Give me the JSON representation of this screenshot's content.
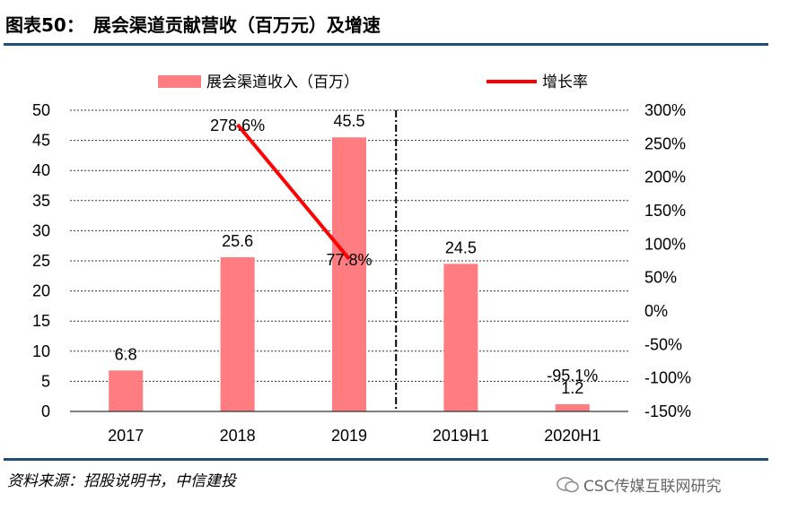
{
  "header": {
    "figure_number": "图表50：",
    "title": "展会渠道贡献营收（百万元）及增速"
  },
  "footer": {
    "source": "资料来源：招股说明书，中信建投",
    "watermark": "CSC传媒互联网研究"
  },
  "chart_data": {
    "type": "bar",
    "categories": [
      "2017",
      "2018",
      "2019",
      "2019H1",
      "2020H1"
    ],
    "series": [
      {
        "name": "展会渠道收入（百万）",
        "type": "bar",
        "axis": "left",
        "values": [
          6.8,
          25.6,
          45.5,
          24.5,
          1.2
        ],
        "value_labels": [
          "6.8",
          "25.6",
          "45.5",
          "24.5",
          "1.2"
        ],
        "color": "#ff7c80"
      },
      {
        "name": "增长率",
        "type": "line",
        "axis": "right",
        "segments": [
          {
            "categories": [
              "2018",
              "2019"
            ],
            "values": [
              278.6,
              77.8
            ]
          }
        ],
        "point_labels": [
          {
            "category": "2018",
            "value": 278.6,
            "label": "278.6%"
          },
          {
            "category": "2019",
            "value": 77.8,
            "label": "77.8%"
          },
          {
            "category": "2020H1",
            "value": -95.1,
            "label": "-95.1%"
          }
        ],
        "color": "#ff0000"
      }
    ],
    "y_left": {
      "min": 0,
      "max": 50,
      "step": 5,
      "tick_labels": [
        "0",
        "5",
        "10",
        "15",
        "20",
        "25",
        "30",
        "35",
        "40",
        "45",
        "50"
      ]
    },
    "y_right": {
      "min": -150,
      "max": 300,
      "step": 50,
      "tick_labels": [
        "-150%",
        "-100%",
        "-50%",
        "0%",
        "50%",
        "100%",
        "150%",
        "200%",
        "250%",
        "300%"
      ]
    },
    "grid": true,
    "legend_position": "top",
    "divider_after_category": "2019"
  }
}
